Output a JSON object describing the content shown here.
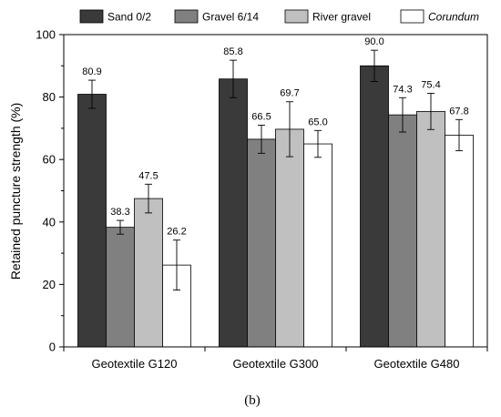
{
  "chart_data": {
    "type": "bar",
    "categories": [
      "Geotextile G120",
      "Geotextile G300",
      "Geotextile G480"
    ],
    "series": [
      {
        "name": "Sand 0/2",
        "color": "#3a3a3a",
        "italic": false,
        "values": [
          80.9,
          85.8,
          90.0
        ],
        "errors": [
          4.5,
          6.0,
          5.0
        ]
      },
      {
        "name": "Gravel 6/14",
        "color": "#808080",
        "italic": false,
        "values": [
          38.3,
          66.5,
          74.3
        ],
        "errors": [
          2.2,
          4.5,
          5.5
        ]
      },
      {
        "name": "River gravel",
        "color": "#c0c0c0",
        "italic": false,
        "values": [
          47.5,
          69.7,
          75.4
        ],
        "errors": [
          4.6,
          8.8,
          5.8
        ]
      },
      {
        "name": "Corundum",
        "color": "#ffffff",
        "italic": true,
        "values": [
          26.2,
          65.0,
          67.8
        ],
        "errors": [
          8.0,
          4.3,
          5.0
        ]
      }
    ],
    "data_labels": [
      [
        "80.9",
        "85.8",
        "90.0"
      ],
      [
        "38.3",
        "66.5",
        "74.3"
      ],
      [
        "47.5",
        "69.7",
        "75.4"
      ],
      [
        "26.2",
        "65.0",
        "67.8"
      ]
    ],
    "ylabel": "Retained puncture strength (%)",
    "ylim": [
      0,
      100
    ],
    "yticks": [
      0,
      20,
      40,
      60,
      80,
      100
    ],
    "legend_position": "top",
    "grid": false
  },
  "caption": "(b)"
}
